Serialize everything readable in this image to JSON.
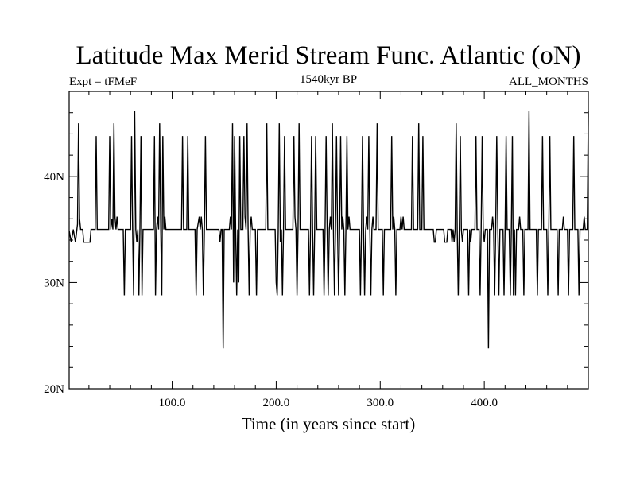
{
  "chart_data": {
    "type": "line",
    "title": "Latitude Max Merid Stream Func. Atlantic (oN)",
    "left_string": "Expt = tFMeF",
    "center_string": "1540kyr BP",
    "right_string": "ALL_MONTHS",
    "xlabel": "Time (in years since start)",
    "ylabel": "",
    "xlim": [
      1,
      500
    ],
    "ylim": [
      20,
      48
    ],
    "x_ticks": [
      100,
      200,
      300,
      400
    ],
    "x_tick_labels": [
      "100.0",
      "200.0",
      "300.0",
      "400.0"
    ],
    "y_ticks": [
      20,
      30,
      40
    ],
    "y_tick_labels": [
      "20N",
      "30N",
      "40N"
    ],
    "baseline": 35,
    "series": [
      {
        "name": "",
        "color": "#000000",
        "values": [
          [
            1,
            34.9
          ],
          [
            3,
            33.8
          ],
          [
            5,
            35
          ],
          [
            7,
            33.8
          ],
          [
            9,
            35.5
          ],
          [
            10,
            45
          ],
          [
            11,
            36
          ],
          [
            12,
            35
          ],
          [
            14,
            35
          ],
          [
            15,
            33.8
          ],
          [
            21,
            33.8
          ],
          [
            22,
            35
          ],
          [
            26,
            35
          ],
          [
            27,
            43.8
          ],
          [
            28,
            35
          ],
          [
            39,
            35
          ],
          [
            40,
            43.8
          ],
          [
            41,
            35
          ],
          [
            42,
            36
          ],
          [
            43,
            35
          ],
          [
            44,
            45
          ],
          [
            45,
            36.2
          ],
          [
            46,
            35
          ],
          [
            47,
            36.2
          ],
          [
            48,
            35
          ],
          [
            53,
            35
          ],
          [
            54,
            28.8
          ],
          [
            55,
            35
          ],
          [
            60,
            35
          ],
          [
            61,
            43.8
          ],
          [
            62,
            35
          ],
          [
            63,
            28.8
          ],
          [
            64,
            46.2
          ],
          [
            65,
            35
          ],
          [
            66,
            33.8
          ],
          [
            67,
            35
          ],
          [
            68,
            28.8
          ],
          [
            69,
            35
          ],
          [
            70,
            43.8
          ],
          [
            71,
            28.8
          ],
          [
            72,
            35
          ],
          [
            82,
            35
          ],
          [
            83,
            43.8
          ],
          [
            84,
            28.8
          ],
          [
            85,
            35
          ],
          [
            86,
            36.2
          ],
          [
            87,
            35
          ],
          [
            88,
            45
          ],
          [
            89,
            35
          ],
          [
            90,
            28.8
          ],
          [
            91,
            43.8
          ],
          [
            92,
            35
          ],
          [
            93,
            36.2
          ],
          [
            94,
            35
          ],
          [
            109,
            35
          ],
          [
            110,
            43.8
          ],
          [
            111,
            35
          ],
          [
            114,
            35
          ],
          [
            115,
            43.8
          ],
          [
            116,
            35
          ],
          [
            122,
            35
          ],
          [
            123,
            28.8
          ],
          [
            124,
            35
          ],
          [
            126,
            36.2
          ],
          [
            127,
            35
          ],
          [
            128,
            36.2
          ],
          [
            129,
            35
          ],
          [
            130,
            28.8
          ],
          [
            131,
            35
          ],
          [
            132,
            43.8
          ],
          [
            133,
            35
          ],
          [
            145,
            35
          ],
          [
            146,
            33.8
          ],
          [
            147,
            35
          ],
          [
            148,
            35
          ],
          [
            149,
            23.8
          ],
          [
            150,
            35
          ],
          [
            155,
            35
          ],
          [
            156,
            36.2
          ],
          [
            157,
            35
          ],
          [
            158,
            45
          ],
          [
            159,
            30
          ],
          [
            160,
            43.8
          ],
          [
            161,
            35
          ],
          [
            162,
            28.8
          ],
          [
            163,
            35
          ],
          [
            164,
            30
          ],
          [
            165,
            43.8
          ],
          [
            166,
            35
          ],
          [
            168,
            35
          ],
          [
            169,
            43.8
          ],
          [
            170,
            36.2
          ],
          [
            171,
            35
          ],
          [
            172,
            45
          ],
          [
            173,
            35
          ],
          [
            174,
            28.8
          ],
          [
            175,
            35
          ],
          [
            176,
            36.2
          ],
          [
            177,
            35
          ],
          [
            180,
            35
          ],
          [
            181,
            28.8
          ],
          [
            182,
            35
          ],
          [
            190,
            35
          ],
          [
            191,
            45
          ],
          [
            192,
            35
          ],
          [
            199,
            35
          ],
          [
            200,
            30
          ],
          [
            201,
            28.8
          ],
          [
            202,
            35
          ],
          [
            203,
            45
          ],
          [
            204,
            33.8
          ],
          [
            205,
            35
          ],
          [
            206,
            28.8
          ],
          [
            207,
            35
          ],
          [
            208,
            43.8
          ],
          [
            209,
            35
          ],
          [
            216,
            35
          ],
          [
            217,
            43.8
          ],
          [
            218,
            36.2
          ],
          [
            219,
            35
          ],
          [
            220,
            28.8
          ],
          [
            221,
            35
          ],
          [
            222,
            45
          ],
          [
            223,
            35
          ],
          [
            231,
            35
          ],
          [
            232,
            28.8
          ],
          [
            233,
            35
          ],
          [
            234,
            43.8
          ],
          [
            235,
            35
          ],
          [
            236,
            28.8
          ],
          [
            237,
            35
          ],
          [
            238,
            43.8
          ],
          [
            239,
            35
          ],
          [
            245,
            35
          ],
          [
            246,
            28.8
          ],
          [
            247,
            35
          ],
          [
            248,
            43.8
          ],
          [
            249,
            35
          ],
          [
            250,
            28.8
          ],
          [
            251,
            35
          ],
          [
            252,
            36.2
          ],
          [
            253,
            35
          ],
          [
            254,
            45
          ],
          [
            255,
            35
          ],
          [
            256,
            28.8
          ],
          [
            257,
            35
          ],
          [
            258,
            43.8
          ],
          [
            259,
            35
          ],
          [
            260,
            28.8
          ],
          [
            261,
            35
          ],
          [
            262,
            43.8
          ],
          [
            263,
            35
          ],
          [
            264,
            36.2
          ],
          [
            265,
            35
          ],
          [
            266,
            28.8
          ],
          [
            267,
            35
          ],
          [
            268,
            43.8
          ],
          [
            269,
            35
          ],
          [
            270,
            36.2
          ],
          [
            271,
            35
          ],
          [
            280,
            35
          ],
          [
            281,
            28.8
          ],
          [
            282,
            35
          ],
          [
            283,
            43.8
          ],
          [
            284,
            35
          ],
          [
            285,
            28.8
          ],
          [
            286,
            35
          ],
          [
            287,
            36.2
          ],
          [
            288,
            35
          ],
          [
            289,
            43.8
          ],
          [
            290,
            35
          ],
          [
            291,
            28.8
          ],
          [
            292,
            35
          ],
          [
            293,
            36.2
          ],
          [
            294,
            35
          ],
          [
            296,
            35
          ],
          [
            297,
            45
          ],
          [
            298,
            35
          ],
          [
            302,
            35
          ],
          [
            303,
            28.8
          ],
          [
            304,
            35
          ],
          [
            310,
            35
          ],
          [
            311,
            43.8
          ],
          [
            312,
            35
          ],
          [
            313,
            36.2
          ],
          [
            314,
            35
          ],
          [
            315,
            28.8
          ],
          [
            316,
            35
          ],
          [
            319,
            35
          ],
          [
            320,
            36.2
          ],
          [
            321,
            35
          ],
          [
            322,
            36.2
          ],
          [
            323,
            35
          ],
          [
            330,
            35
          ],
          [
            331,
            43.8
          ],
          [
            332,
            35
          ],
          [
            336,
            35
          ],
          [
            337,
            45
          ],
          [
            338,
            35
          ],
          [
            340,
            35
          ],
          [
            341,
            43.8
          ],
          [
            342,
            35
          ],
          [
            351,
            35
          ],
          [
            352,
            33.8
          ],
          [
            353,
            33.8
          ],
          [
            354,
            35
          ],
          [
            360,
            35
          ],
          [
            361,
            35
          ],
          [
            362,
            33.8
          ],
          [
            364,
            33.8
          ],
          [
            365,
            35
          ],
          [
            368,
            35
          ],
          [
            369,
            33.8
          ],
          [
            370,
            35
          ],
          [
            371,
            33.8
          ],
          [
            372,
            35
          ],
          [
            373,
            45
          ],
          [
            374,
            35
          ],
          [
            375,
            28.8
          ],
          [
            376,
            35
          ],
          [
            377,
            43.8
          ],
          [
            378,
            35
          ],
          [
            379,
            33.8
          ],
          [
            380,
            35
          ],
          [
            384,
            35
          ],
          [
            385,
            28.8
          ],
          [
            386,
            35
          ],
          [
            387,
            33.8
          ],
          [
            388,
            35
          ],
          [
            391,
            35
          ],
          [
            392,
            43.8
          ],
          [
            393,
            35
          ],
          [
            395,
            35
          ],
          [
            396,
            28.8
          ],
          [
            397,
            35
          ],
          [
            398,
            43.8
          ],
          [
            399,
            35
          ],
          [
            400,
            33.8
          ],
          [
            401,
            35
          ],
          [
            403,
            35
          ],
          [
            404,
            23.8
          ],
          [
            405,
            35
          ],
          [
            407,
            35
          ],
          [
            408,
            36.2
          ],
          [
            409,
            35
          ],
          [
            410,
            28.8
          ],
          [
            411,
            35
          ],
          [
            412,
            43.8
          ],
          [
            413,
            35
          ],
          [
            414,
            28.8
          ],
          [
            415,
            35
          ],
          [
            418,
            35
          ],
          [
            419,
            28.8
          ],
          [
            420,
            35
          ],
          [
            421,
            43.8
          ],
          [
            422,
            35
          ],
          [
            424,
            35
          ],
          [
            425,
            28.8
          ],
          [
            426,
            35
          ],
          [
            427,
            43.8
          ],
          [
            428,
            28.8
          ],
          [
            429,
            35
          ],
          [
            430,
            28.8
          ],
          [
            431,
            35
          ],
          [
            433,
            35
          ],
          [
            434,
            36.2
          ],
          [
            435,
            35
          ],
          [
            437,
            35
          ],
          [
            438,
            28.8
          ],
          [
            439,
            35
          ],
          [
            441,
            35
          ],
          [
            442,
            35
          ],
          [
            443,
            46.2
          ],
          [
            444,
            35
          ],
          [
            450,
            35
          ],
          [
            451,
            28.8
          ],
          [
            452,
            35
          ],
          [
            455,
            35
          ],
          [
            456,
            43.8
          ],
          [
            457,
            35
          ],
          [
            460,
            35
          ],
          [
            461,
            28.8
          ],
          [
            462,
            35
          ],
          [
            463,
            43.8
          ],
          [
            464,
            35
          ],
          [
            470,
            35
          ],
          [
            471,
            28.8
          ],
          [
            472,
            35
          ],
          [
            475,
            35
          ],
          [
            476,
            36.2
          ],
          [
            477,
            35
          ],
          [
            480,
            35
          ],
          [
            481,
            28.8
          ],
          [
            482,
            35
          ],
          [
            485,
            35
          ],
          [
            486,
            43.8
          ],
          [
            487,
            35
          ],
          [
            490,
            35
          ],
          [
            491,
            28.8
          ],
          [
            492,
            35
          ],
          [
            495,
            35
          ],
          [
            496,
            36.2
          ],
          [
            497,
            35
          ],
          [
            499,
            35
          ],
          [
            500,
            46.2
          ]
        ]
      }
    ]
  }
}
